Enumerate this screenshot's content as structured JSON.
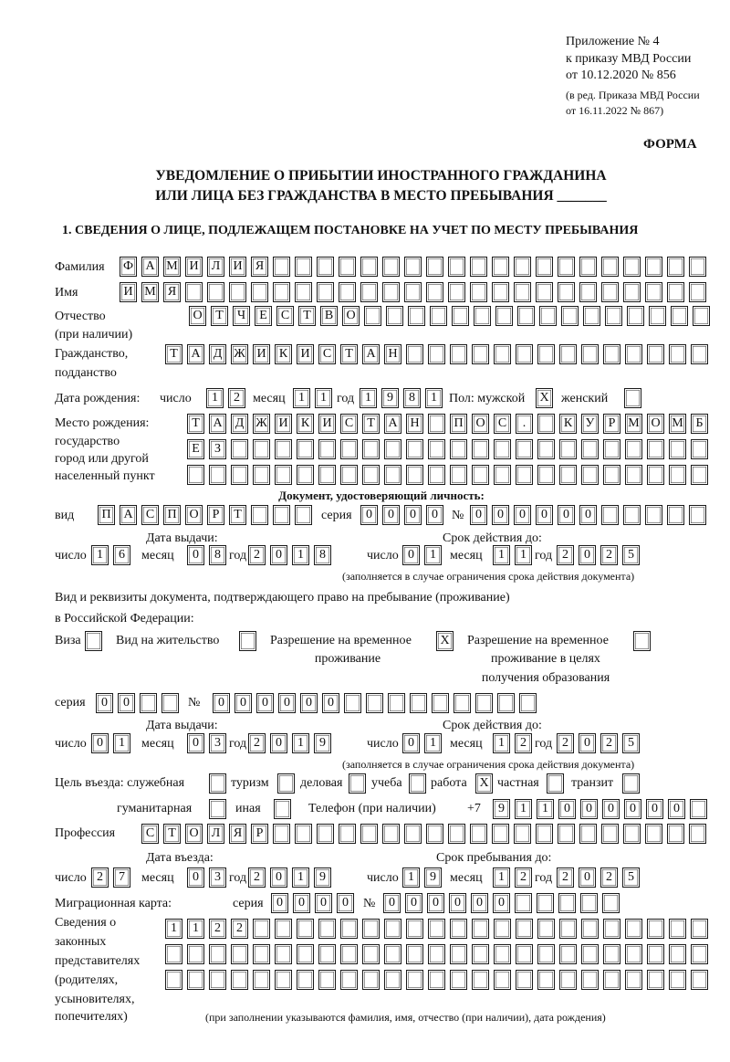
{
  "header": {
    "appendix": "Приложение № 4",
    "order": "к приказу МВД России",
    "order_date": "от 10.12.2020 № 856",
    "edition_1": "(в ред. Приказа МВД России",
    "edition_2": "от 16.11.2022 № 867)",
    "form_label": "ФОРМА",
    "title_1": "УВЕДОМЛЕНИЕ О ПРИБЫТИИ ИНОСТРАННОГО ГРАЖДАНИНА",
    "title_2": "ИЛИ ЛИЦА БЕЗ ГРАЖДАНСТВА В МЕСТО ПРЕБЫВАНИЯ _______",
    "section_1": "1. СВЕДЕНИЯ О ЛИЦЕ, ПОДЛЕЖАЩЕМ ПОСТАНОВКЕ НА УЧЕТ ПО МЕСТУ ПРЕБЫВАНИЯ"
  },
  "labels": {
    "surname": "Фамилия",
    "name": "Имя",
    "patronymic": "Отчество",
    "patronymic_note": "(при наличии)",
    "citizenship_1": "Гражданство,",
    "citizenship_2": "подданство",
    "birth_date": "Дата рождения:",
    "day": "число",
    "month": "месяц",
    "year": "год",
    "sex": "Пол: мужской",
    "female": "женский",
    "birthplace_1": "Место рождения:",
    "birthplace_2": "государство",
    "birthplace_3": "город или другой",
    "birthplace_4": "населенный пункт",
    "id_doc": "Документ, удостоверяющий личность:",
    "kind": "вид",
    "series": "серия",
    "number": "№",
    "issue_date": "Дата выдачи:",
    "valid_until": "Срок действия до:",
    "validity_note": "(заполняется в случае ограничения срока действия документа)",
    "stay_doc_1": "Вид и реквизиты документа, подтверждающего право на пребывание (проживание)",
    "stay_doc_2": "в Российской Федерации:",
    "visa": "Виза",
    "residence": "Вид на жительство",
    "temp_permit_1": "Разрешение на временное",
    "temp_permit_2": "проживание",
    "edu_permit_1": "Разрешение на временное",
    "edu_permit_2": "проживание в целях",
    "edu_permit_3": "получения образования",
    "purpose": "Цель въезда: служебная",
    "tourism": "туризм",
    "business": "деловая",
    "study": "учеба",
    "work": "работа",
    "private": "частная",
    "transit": "транзит",
    "humanitarian": "гуманитарная",
    "other": "иная",
    "phone": "Телефон (при наличии)",
    "phone_prefix": "+7",
    "profession": "Профессия",
    "entry_date": "Дата въезда:",
    "stay_until": "Срок пребывания до:",
    "migration_card": "Миграционная карта:",
    "reps_1": "Сведения о",
    "reps_2": "законных",
    "reps_3": "представителях",
    "reps_4": "(родителях,",
    "reps_5": "усыновителях,",
    "reps_6": "попечителях)",
    "reps_note": "(при заполнении указываются фамилия, имя, отчество (при наличии), дата рождения)"
  },
  "values": {
    "surname": "ФАМИЛИЯ",
    "name": "ИМЯ",
    "patronymic": "ОТЧЕСТВО",
    "citizenship": "ТАДЖИКИСТАН",
    "birth_day": "12",
    "birth_month": "11",
    "birth_year": "1981",
    "sex_male": "X",
    "sex_female": "",
    "birthplace_1": "ТАДЖИКИСТАН ПОС. КУРМОМБ",
    "birthplace_2": "ЕЗ",
    "birthplace_3": "",
    "id_kind": "ПАСПОРТ",
    "id_series": "0000",
    "id_number": "000000",
    "id_issue_day": "16",
    "id_issue_month": "08",
    "id_issue_year": "2018",
    "id_valid_day": "01",
    "id_valid_month": "11",
    "id_valid_year": "2025",
    "visa": "",
    "residence": "",
    "temp_permit": "X",
    "edu_permit": "",
    "stay_series": "00",
    "stay_number": "000000",
    "stay_issue_day": "01",
    "stay_issue_month": "03",
    "stay_issue_year": "2019",
    "stay_valid_day": "01",
    "stay_valid_month": "12",
    "stay_valid_year": "2025",
    "p_service": "",
    "p_tourism": "",
    "p_business": "",
    "p_study": "",
    "p_work": "X",
    "p_private": "",
    "p_transit": "",
    "p_humanitarian": "",
    "p_other": "",
    "phone": "911000000",
    "profession": "СТОЛЯР",
    "entry_day": "27",
    "entry_month": "03",
    "entry_year": "2019",
    "until_day": "19",
    "until_month": "12",
    "until_year": "2025",
    "mc_series": "0000",
    "mc_number": "000000",
    "reps_1": "1122",
    "reps_2": "",
    "reps_3": ""
  }
}
